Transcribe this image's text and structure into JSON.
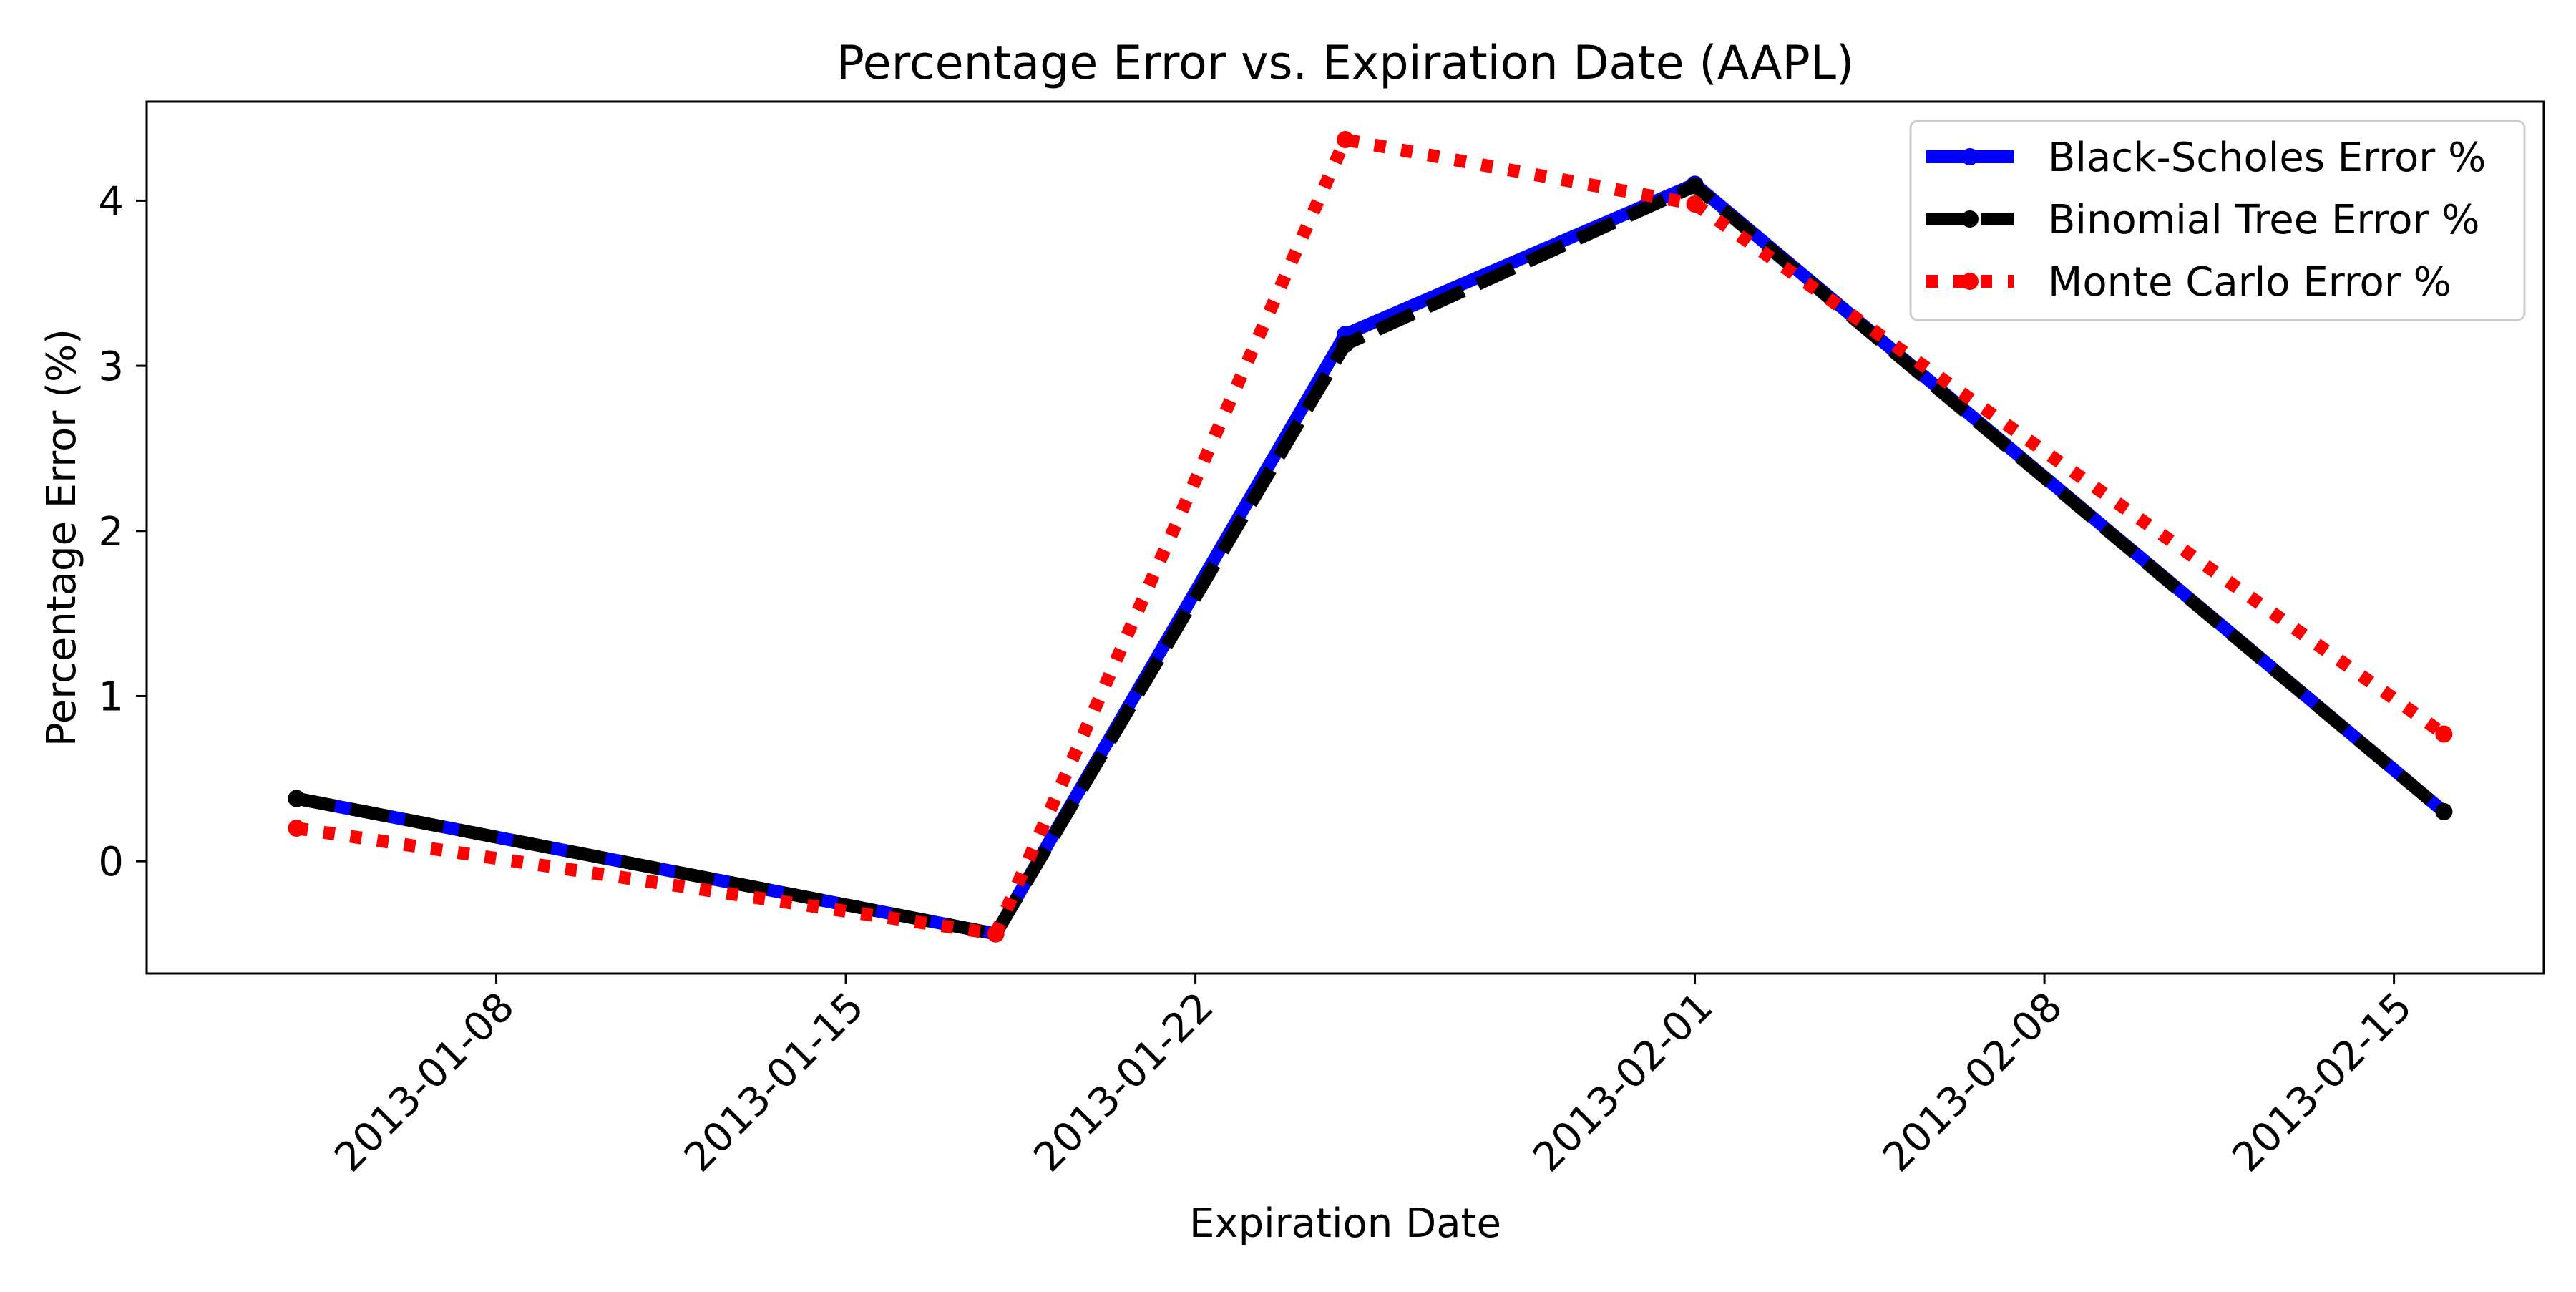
{
  "chart_data": {
    "type": "line",
    "title": "Percentage Error vs. Expiration Date (AAPL)",
    "xlabel": "Expiration Date",
    "ylabel": "Percentage Error (%)",
    "x": [
      "2013-01-04",
      "2013-01-18",
      "2013-01-25",
      "2013-02-01",
      "2013-02-16"
    ],
    "xlim": [
      "2013-01-01",
      "2013-02-18"
    ],
    "ylim": [
      -0.68,
      4.6
    ],
    "xticks": [
      "2013-01-08",
      "2013-01-15",
      "2013-01-22",
      "2013-02-01",
      "2013-02-08",
      "2013-02-15"
    ],
    "yticks": [
      0,
      1,
      2,
      3,
      4
    ],
    "grid": false,
    "legend_position": "upper-right",
    "series": [
      {
        "name": "Black-Scholes Error %",
        "color": "#0000ff",
        "style": "solid",
        "values": [
          0.38,
          -0.44,
          3.19,
          4.1,
          0.3
        ]
      },
      {
        "name": "Binomial Tree Error %",
        "color": "#000000",
        "style": "dashed",
        "values": [
          0.38,
          -0.44,
          3.13,
          4.09,
          0.3
        ]
      },
      {
        "name": "Monte Carlo Error %",
        "color": "#ff0000",
        "style": "dotted",
        "values": [
          0.2,
          -0.44,
          4.37,
          3.98,
          0.77
        ]
      }
    ]
  }
}
